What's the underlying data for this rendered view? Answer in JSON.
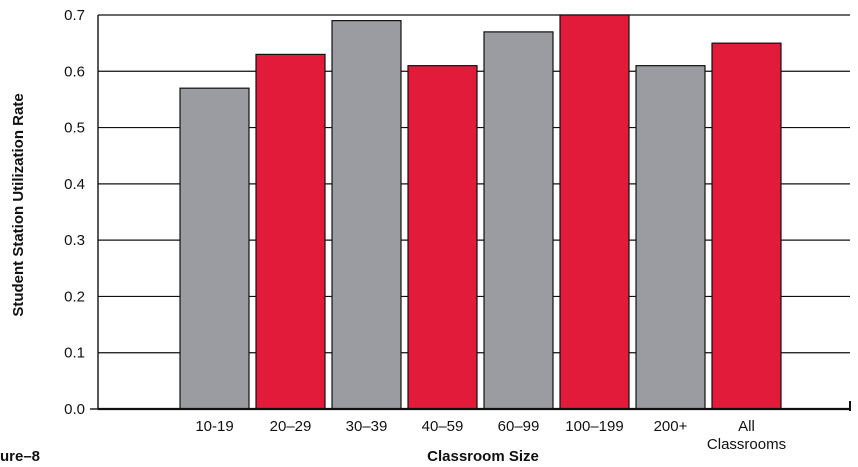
{
  "figure_label": "ure–8",
  "chart_data": {
    "type": "bar",
    "title": "",
    "xlabel": "Classroom Size",
    "ylabel": "Student Station Utilization Rate",
    "categories": [
      "10-19",
      "20-29",
      "30-39",
      "40-59",
      "60-99",
      "100-199",
      "200+",
      "All Classrooms"
    ],
    "category_lines": [
      [
        "10-19"
      ],
      [
        "20–29"
      ],
      [
        "30–39"
      ],
      [
        "40–59"
      ],
      [
        "60–99"
      ],
      [
        "100–199"
      ],
      [
        "200+"
      ],
      [
        "All",
        "Classrooms"
      ]
    ],
    "values": [
      0.57,
      0.63,
      0.69,
      0.61,
      0.67,
      0.7,
      0.61,
      0.65
    ],
    "ylim": [
      0.0,
      0.7
    ],
    "yticks": [
      0.0,
      0.1,
      0.2,
      0.3,
      0.4,
      0.5,
      0.6,
      0.7
    ],
    "ytick_labels": [
      "0.0",
      "0.1",
      "0.2",
      "0.3",
      "0.4",
      "0.5",
      "0.6",
      "0.7"
    ],
    "grid": true,
    "colors": {
      "gray": "#9b9ca1",
      "red": "#e21b3a",
      "grid": "#111111",
      "axis": "#111111"
    },
    "bar_colors": [
      "gray",
      "red",
      "gray",
      "red",
      "gray",
      "red",
      "gray",
      "red"
    ]
  }
}
